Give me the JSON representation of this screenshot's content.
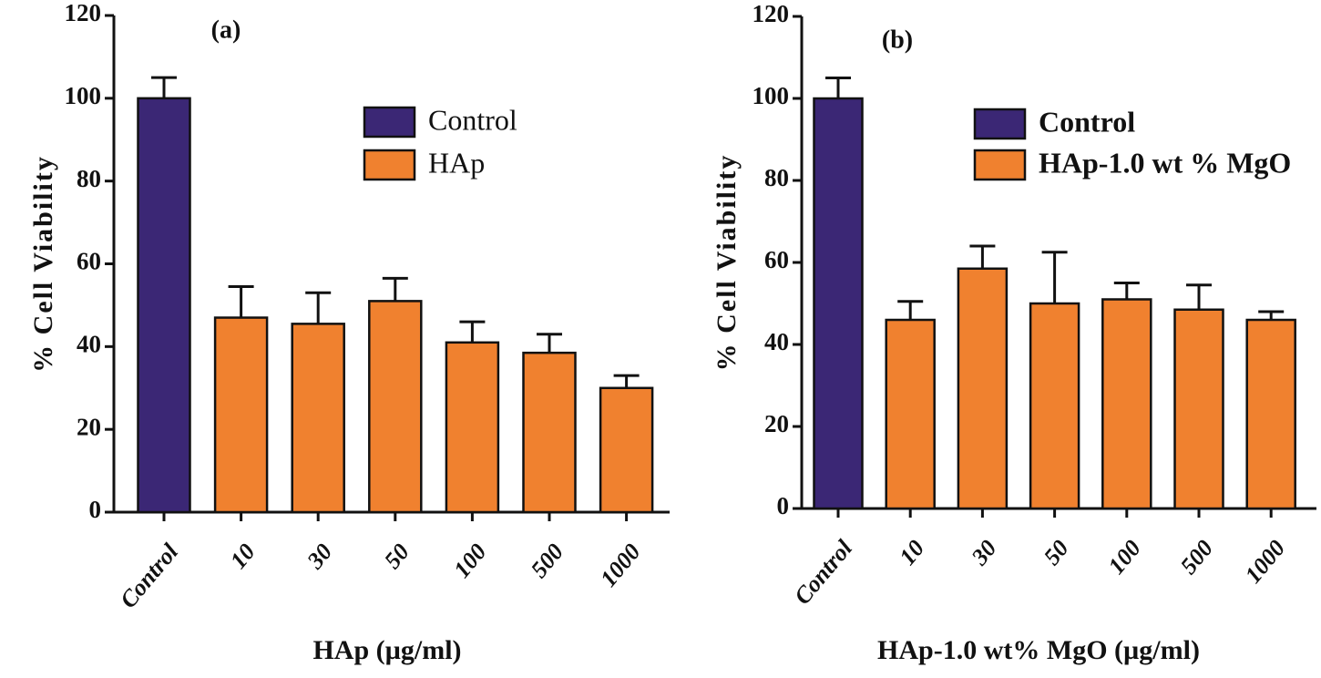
{
  "chart_data": [
    {
      "type": "bar",
      "title": "(a)",
      "y_label": "% Cell Viability",
      "x_label": "HAp (µg/ml)",
      "categories": [
        "Control",
        "10",
        "30",
        "50",
        "100",
        "500",
        "1000"
      ],
      "series": [
        {
          "name": "Control",
          "color": "#3b2775",
          "values": [
            100,
            null,
            null,
            null,
            null,
            null,
            null
          ],
          "errors": [
            5,
            null,
            null,
            null,
            null,
            null,
            null
          ]
        },
        {
          "name": "HAp",
          "color": "#f0812f",
          "values": [
            null,
            47,
            45.5,
            51,
            41,
            38.5,
            30
          ],
          "errors": [
            null,
            7.5,
            7.5,
            5.5,
            5,
            4.5,
            3
          ]
        }
      ],
      "ylim": [
        0,
        120
      ],
      "yticks": [
        0,
        20,
        40,
        60,
        80,
        100,
        120
      ],
      "grid": false
    },
    {
      "type": "bar",
      "title": "(b)",
      "y_label": "% Cell Viability",
      "x_label": "HAp-1.0 wt% MgO (µg/ml)",
      "categories": [
        "Control",
        "10",
        "30",
        "50",
        "100",
        "500",
        "1000"
      ],
      "series": [
        {
          "name": "Control",
          "color": "#3b2775",
          "values": [
            100,
            null,
            null,
            null,
            null,
            null,
            null
          ],
          "errors": [
            5,
            null,
            null,
            null,
            null,
            null,
            null
          ]
        },
        {
          "name": "HAp-1.0 wt % MgO",
          "color": "#f0812f",
          "values": [
            null,
            46,
            58.5,
            50,
            51,
            48.5,
            46
          ],
          "errors": [
            null,
            4.5,
            5.5,
            12.5,
            4,
            6,
            2
          ]
        }
      ],
      "ylim": [
        0,
        120
      ],
      "yticks": [
        0,
        20,
        40,
        60,
        80,
        100,
        120
      ],
      "grid": false
    }
  ]
}
